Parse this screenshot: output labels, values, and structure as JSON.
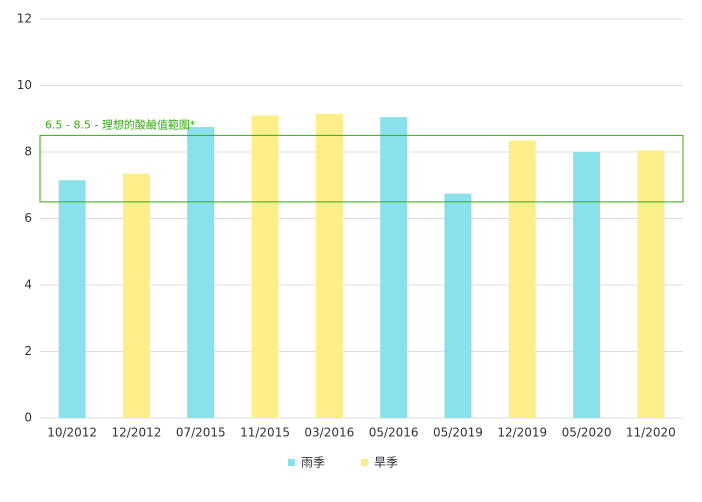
{
  "chart_data": {
    "type": "bar",
    "categories": [
      "10/2012",
      "12/2012",
      "07/2015",
      "11/2015",
      "03/2016",
      "05/2016",
      "05/2019",
      "12/2019",
      "05/2020",
      "11/2020"
    ],
    "series": [
      {
        "name": "雨季",
        "color": "#8ae1ec",
        "values": [
          7.15,
          null,
          8.75,
          null,
          null,
          9.05,
          6.75,
          null,
          8.0,
          null
        ]
      },
      {
        "name": "旱季",
        "color": "#fdee8a",
        "values": [
          null,
          7.35,
          null,
          9.1,
          9.15,
          null,
          null,
          8.35,
          null,
          8.05
        ]
      }
    ],
    "ylim": [
      0,
      12
    ],
    "yticks": [
      0,
      2,
      4,
      6,
      8,
      10,
      12
    ],
    "grid": true,
    "band": {
      "range": [
        6.5,
        8.5
      ],
      "label": "6.5 - 8.5 - 理想的酸鹼值範圍*",
      "color": "#33aa11"
    },
    "legend": "bottom"
  }
}
